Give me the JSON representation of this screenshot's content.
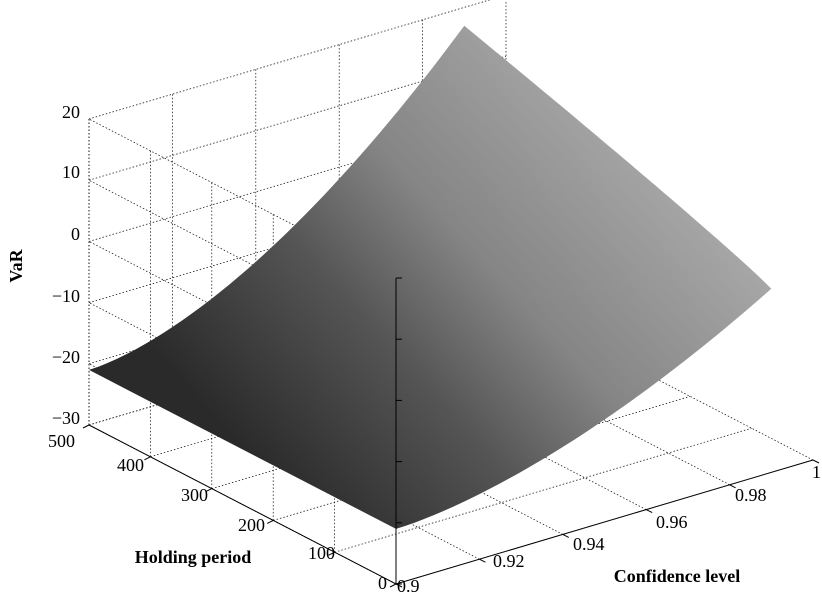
{
  "chart_data": {
    "type": "surface3d",
    "title": "",
    "xlabel": "Confidence level",
    "ylabel": "Holding period",
    "zlabel": "VaR",
    "xlim": [
      0.9,
      1.0
    ],
    "ylim": [
      0,
      500
    ],
    "zlim": [
      -30,
      20
    ],
    "x_ticks": [
      "0.9",
      "0.92",
      "0.94",
      "0.96",
      "0.98",
      "1"
    ],
    "y_ticks": [
      "0",
      "100",
      "200",
      "300",
      "400",
      "500"
    ],
    "z_ticks": [
      "−30",
      "−20",
      "−10",
      "0",
      "10",
      "20"
    ],
    "grid": true,
    "colormap": "gray",
    "surface": {
      "x_range": [
        0.9,
        0.99
      ],
      "y_range": [
        0,
        500
      ],
      "z_at_corners": {
        "x0.90_y0": -21,
        "x0.90_y500": -21,
        "x0.99_y0": 0,
        "x0.99_y500": 17
      }
    }
  }
}
